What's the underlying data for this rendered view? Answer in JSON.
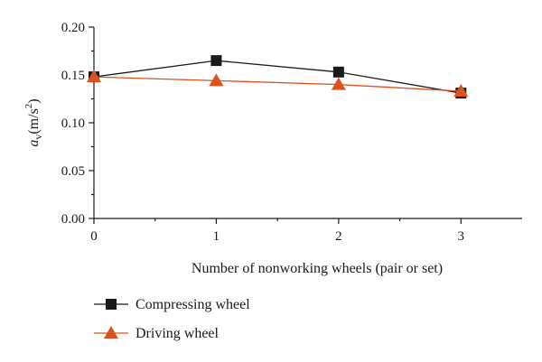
{
  "chart_data": {
    "type": "line",
    "title": "",
    "xlabel": "Number of nonworking wheels (pair or set)",
    "ylabel": {
      "symbol": "a",
      "subscript": "v",
      "unit_open": "(m/s",
      "unit_power": "2",
      "unit_close": ")"
    },
    "xlim": [
      0,
      3.5
    ],
    "ylim": [
      0,
      0.2
    ],
    "x_ticks": [
      0,
      1,
      2,
      3
    ],
    "x_tick_labels": [
      "0",
      "1",
      "2",
      "3"
    ],
    "y_ticks": [
      0,
      0.05,
      0.1,
      0.15,
      0.2
    ],
    "y_tick_labels": [
      "0.00",
      "0.05",
      "0.10",
      "0.15",
      "0.20"
    ],
    "grid": false,
    "legend_position": "bottom-left, below plot",
    "x": [
      0,
      1,
      2,
      3
    ],
    "series": [
      {
        "name": "Compressing wheel",
        "values": [
          0.148,
          0.165,
          0.153,
          0.131
        ],
        "marker": "square",
        "line_color": "#1a1a1a",
        "marker_color": "#1a1a1a"
      },
      {
        "name": "Driving wheel",
        "values": [
          0.148,
          0.144,
          0.14,
          0.133
        ],
        "marker": "triangle",
        "line_color": "#d9531e",
        "marker_color": "#d9531e"
      }
    ]
  }
}
